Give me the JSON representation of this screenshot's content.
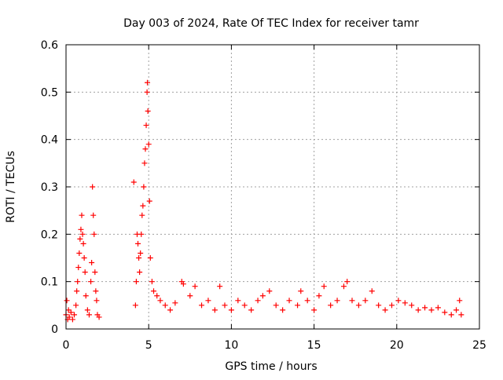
{
  "chart_data": {
    "type": "scatter",
    "title": "Day 003 of 2024, Rate Of TEC Index for receiver tamr",
    "xlabel": "GPS time / hours",
    "ylabel": "ROTI / TECUs",
    "xlim": [
      0,
      25
    ],
    "ylim": [
      0,
      0.6
    ],
    "x_ticks": [
      0,
      5,
      10,
      15,
      20,
      25
    ],
    "y_ticks": [
      0,
      0.1,
      0.2,
      0.3,
      0.4,
      0.5,
      0.6
    ],
    "x_tick_labels": [
      "0",
      "5",
      "10",
      "15",
      "20",
      "25"
    ],
    "y_tick_labels": [
      "0",
      "0.1",
      "0.2",
      "0.3",
      "0.4",
      "0.5",
      "0.6"
    ],
    "grid": true,
    "marker": "plus",
    "color": "#ff0000",
    "points": [
      [
        0.0,
        0.03
      ],
      [
        0.05,
        0.06
      ],
      [
        0.1,
        0.02
      ],
      [
        0.15,
        0.04
      ],
      [
        0.2,
        0.025
      ],
      [
        0.3,
        0.035
      ],
      [
        0.4,
        0.02
      ],
      [
        0.5,
        0.03
      ],
      [
        0.6,
        0.05
      ],
      [
        0.65,
        0.08
      ],
      [
        0.7,
        0.1
      ],
      [
        0.75,
        0.13
      ],
      [
        0.8,
        0.16
      ],
      [
        0.85,
        0.19
      ],
      [
        0.9,
        0.21
      ],
      [
        0.95,
        0.24
      ],
      [
        1.0,
        0.2
      ],
      [
        1.05,
        0.18
      ],
      [
        1.1,
        0.15
      ],
      [
        1.15,
        0.12
      ],
      [
        1.2,
        0.07
      ],
      [
        1.3,
        0.04
      ],
      [
        1.4,
        0.03
      ],
      [
        1.5,
        0.1
      ],
      [
        1.55,
        0.14
      ],
      [
        1.6,
        0.3
      ],
      [
        1.65,
        0.24
      ],
      [
        1.7,
        0.2
      ],
      [
        1.75,
        0.12
      ],
      [
        1.8,
        0.08
      ],
      [
        1.85,
        0.06
      ],
      [
        1.9,
        0.03
      ],
      [
        2.0,
        0.025
      ],
      [
        4.1,
        0.31
      ],
      [
        4.2,
        0.05
      ],
      [
        4.25,
        0.1
      ],
      [
        4.3,
        0.2
      ],
      [
        4.35,
        0.18
      ],
      [
        4.4,
        0.15
      ],
      [
        4.45,
        0.12
      ],
      [
        4.5,
        0.16
      ],
      [
        4.55,
        0.2
      ],
      [
        4.6,
        0.24
      ],
      [
        4.65,
        0.26
      ],
      [
        4.7,
        0.3
      ],
      [
        4.75,
        0.35
      ],
      [
        4.8,
        0.38
      ],
      [
        4.85,
        0.43
      ],
      [
        4.9,
        0.5
      ],
      [
        4.92,
        0.52
      ],
      [
        4.95,
        0.46
      ],
      [
        5.0,
        0.39
      ],
      [
        5.05,
        0.27
      ],
      [
        5.1,
        0.15
      ],
      [
        5.2,
        0.1
      ],
      [
        5.3,
        0.08
      ],
      [
        5.5,
        0.07
      ],
      [
        5.7,
        0.06
      ],
      [
        6.0,
        0.05
      ],
      [
        6.3,
        0.04
      ],
      [
        6.6,
        0.055
      ],
      [
        7.0,
        0.1
      ],
      [
        7.1,
        0.095
      ],
      [
        7.5,
        0.07
      ],
      [
        7.8,
        0.09
      ],
      [
        8.2,
        0.05
      ],
      [
        8.6,
        0.06
      ],
      [
        9.0,
        0.04
      ],
      [
        9.3,
        0.09
      ],
      [
        9.6,
        0.05
      ],
      [
        10.0,
        0.04
      ],
      [
        10.4,
        0.06
      ],
      [
        10.8,
        0.05
      ],
      [
        11.2,
        0.04
      ],
      [
        11.6,
        0.06
      ],
      [
        11.9,
        0.07
      ],
      [
        12.3,
        0.08
      ],
      [
        12.7,
        0.05
      ],
      [
        13.1,
        0.04
      ],
      [
        13.5,
        0.06
      ],
      [
        14.0,
        0.05
      ],
      [
        14.2,
        0.08
      ],
      [
        14.6,
        0.06
      ],
      [
        15.0,
        0.04
      ],
      [
        15.3,
        0.07
      ],
      [
        15.6,
        0.09
      ],
      [
        16.0,
        0.05
      ],
      [
        16.4,
        0.06
      ],
      [
        16.8,
        0.09
      ],
      [
        17.0,
        0.1
      ],
      [
        17.3,
        0.06
      ],
      [
        17.7,
        0.05
      ],
      [
        18.1,
        0.06
      ],
      [
        18.5,
        0.08
      ],
      [
        18.9,
        0.05
      ],
      [
        19.3,
        0.04
      ],
      [
        19.7,
        0.05
      ],
      [
        20.1,
        0.06
      ],
      [
        20.5,
        0.055
      ],
      [
        20.9,
        0.05
      ],
      [
        21.3,
        0.04
      ],
      [
        21.7,
        0.045
      ],
      [
        22.1,
        0.04
      ],
      [
        22.5,
        0.045
      ],
      [
        22.9,
        0.035
      ],
      [
        23.3,
        0.03
      ],
      [
        23.6,
        0.04
      ],
      [
        23.8,
        0.06
      ],
      [
        23.9,
        0.03
      ]
    ]
  }
}
